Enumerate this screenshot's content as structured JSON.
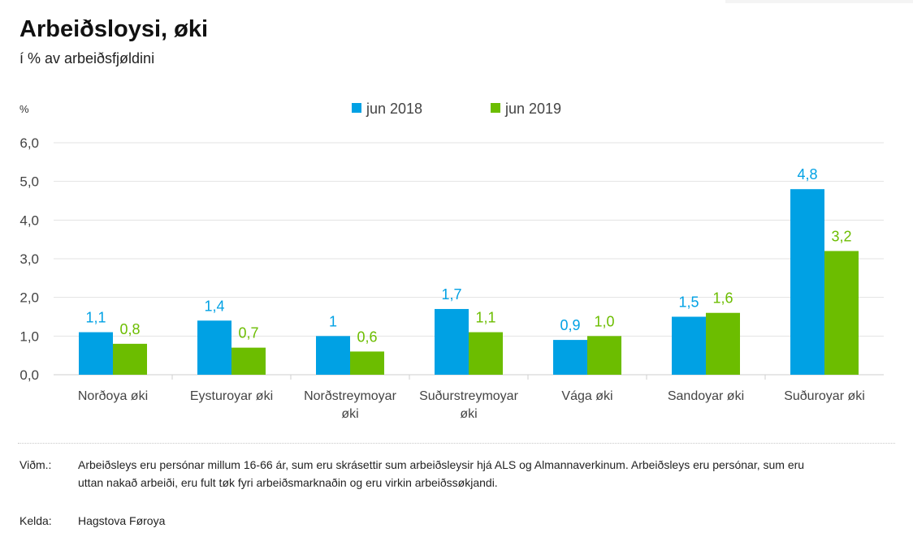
{
  "header": {
    "title": "Arbeiðsloysi, øki",
    "subtitle": "í % av arbeiðsfjøldini"
  },
  "chart_data": {
    "type": "bar",
    "title": "Arbeiðsloysi, øki",
    "subtitle": "í % av arbeiðsfjøldini",
    "ylabel": "%",
    "xlabel": "",
    "ylim": [
      0,
      6
    ],
    "yticks": [
      "0,0",
      "1,0",
      "2,0",
      "3,0",
      "4,0",
      "5,0",
      "6,0"
    ],
    "grid": true,
    "legend_position": "top-center",
    "categories": [
      [
        "Norðoya øki"
      ],
      [
        "Eysturoyar øki"
      ],
      [
        "Norðstreymoyar",
        "øki"
      ],
      [
        "Suðurstreymoyar",
        "øki"
      ],
      [
        "Vága øki"
      ],
      [
        "Sandoyar øki"
      ],
      [
        "Suðuroyar øki"
      ]
    ],
    "series": [
      {
        "name": "jun 2018",
        "color": "#00a1e4",
        "values": [
          1.1,
          1.4,
          1.0,
          1.7,
          0.9,
          1.5,
          4.8
        ],
        "labels": [
          "1,1",
          "1,4",
          "1",
          "1,7",
          "0,9",
          "1,5",
          "4,8"
        ]
      },
      {
        "name": "jun 2019",
        "color": "#6cbd00",
        "values": [
          0.8,
          0.7,
          0.6,
          1.1,
          1.0,
          1.6,
          3.2
        ],
        "labels": [
          "0,8",
          "0,7",
          "0,6",
          "1,1",
          "1,0",
          "1,6",
          "3,2"
        ]
      }
    ]
  },
  "notes": {
    "remark_label": "Viðm.:",
    "remark_line1": "Arbeiðsleys eru persónar millum 16-66 ár, sum eru skrásettir sum arbeiðsleysir hjá ALS og Almannaverkinum. Arbeiðsleys eru persónar, sum eru",
    "remark_line2": "uttan nakað arbeiði, eru fult tøk fyri arbeiðsmarknaðin og eru virkin arbeiðssøkjandi.",
    "source_label": "Kelda:",
    "source_text": "Hagstova Føroya"
  }
}
